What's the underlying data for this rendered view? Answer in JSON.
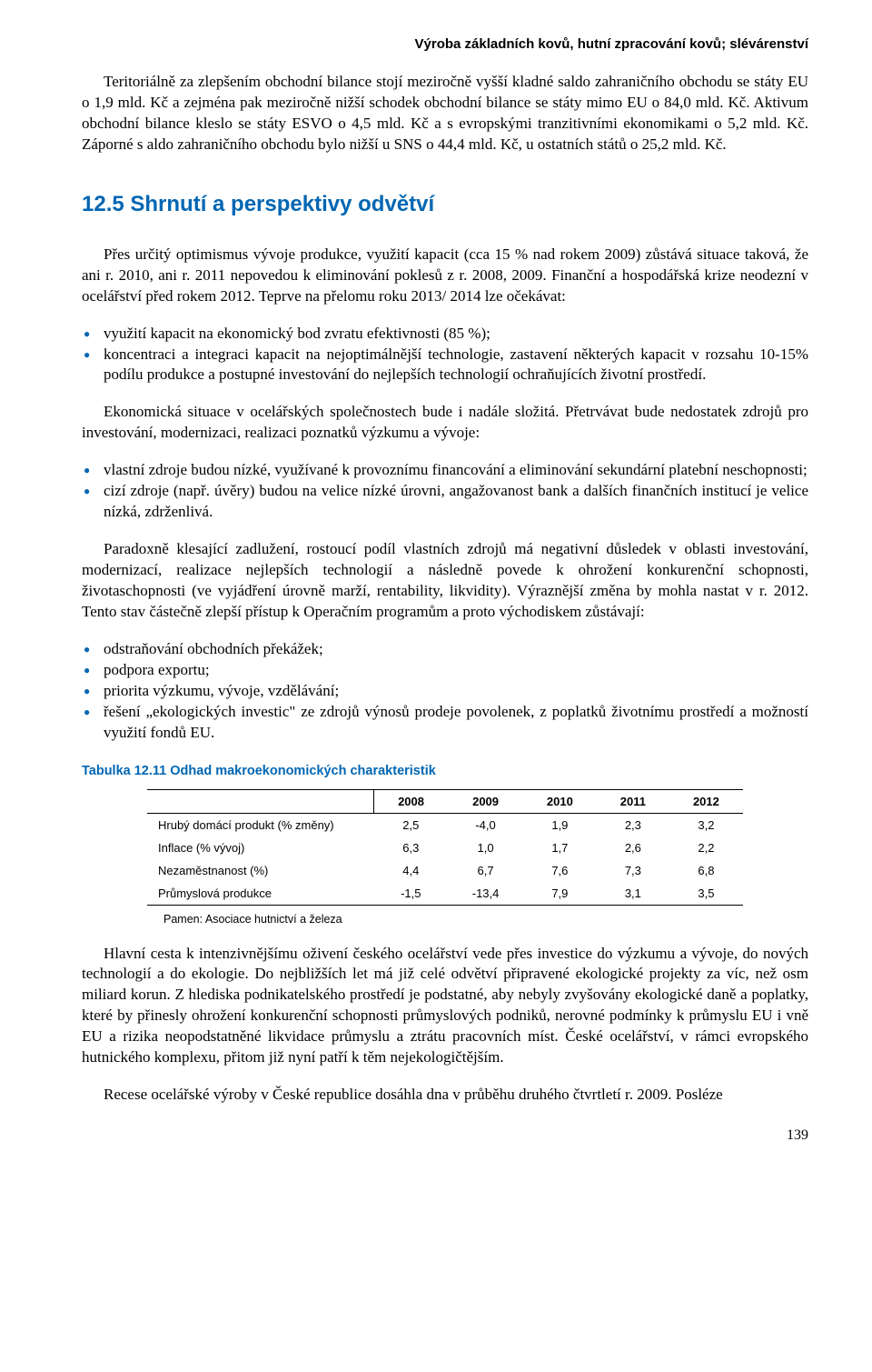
{
  "header": "Výroba základních kovů, hutní zpracování kovů; slévárenství",
  "paragraphs": {
    "p1": "Teritoriálně za zlepšením obchodní bilance stojí meziročně vyšší kladné saldo zahraničního obchodu se státy EU o 1,9 mld. Kč a zejména pak meziročně nižší schodek obchodní bilance se státy mimo EU o 84,0 mld. Kč. Aktivum obchodní bilance kleslo se státy ESVO o 4,5 mld. Kč a s evropskými tranzitivními ekonomikami o 5,2 mld. Kč. Záporné s aldo zahraničního obchodu bylo nižší u SNS o 44,4 mld. Kč, u ostatních států o 25,2 mld. Kč.",
    "p2": "Přes určitý optimismus vývoje produkce, využití kapacit (cca 15 % nad rokem 2009) zůstává situace taková, že ani r. 2010, ani r. 2011 nepovedou k eliminování poklesů z r. 2008, 2009. Finanční a hospodářská krize neodezní v ocelářství před rokem 2012. Teprve na přelomu roku 2013/ 2014 lze očekávat:",
    "p3": "Ekonomická situace v ocelářských společnostech bude i nadále složitá. Přetrvávat bude nedostatek zdrojů pro investování, modernizaci, realizaci poznatků výzkumu a vývoje:",
    "p4": "Paradoxně klesající zadlužení, rostoucí podíl vlastních zdrojů má negativní důsledek v oblasti investování, modernizací, realizace nejlepších technologií a následně povede k ohrožení konkurenční schopnosti, životaschopnosti (ve vyjádření úrovně marží, rentability, likvidity). Výraznější změna by mohla nastat v r. 2012. Tento stav částečně zlepší přístup k Operačním programům a proto východiskem zůstávají:",
    "p5": "Hlavní cesta k intenzivnějšímu oživení českého ocelářství vede přes investice do výzkumu a vývoje, do nových technologií a do ekologie. Do nejbližších let má již celé odvětví připravené ekologické projekty za víc, než osm miliard korun. Z hlediska podnikatelského prostředí je podstatné, aby nebyly zvyšovány ekologické daně a poplatky, které by přinesly ohrožení konkurenční schopnosti průmyslových podniků, nerovné podmínky k průmyslu EU i vně EU a rizika neopodstatněné likvidace průmyslu a ztrátu pracovních míst. České ocelářství, v rámci evropského hutnického komplexu, přitom již nyní patří k těm nejekologičtějším.",
    "p6": "Recese ocelářské výroby v České republice dosáhla dna v průběhu  druhého čtvrtletí r. 2009. Posléze"
  },
  "section_title": "12.5 Shrnutí a perspektivy odvětví",
  "bullets1": [
    "využití kapacit na ekonomický bod zvratu efektivnosti (85 %);",
    "koncentraci a integraci kapacit na nejoptimálnější technologie, zastavení některých kapacit v rozsahu 10-15% podílu produkce a postupné investování do nejlepších technologií ochraňujících životní prostředí."
  ],
  "bullets2": [
    "vlastní zdroje budou nízké, využívané k provoznímu financování a eliminování sekundární platební neschopnosti;",
    "cizí zdroje (např. úvěry) budou na velice nízké úrovni, angažovanost bank a dalších finančních institucí je velice nízká, zdrženlivá."
  ],
  "bullets3": [
    "odstraňování obchodních překážek;",
    "podpora exportu;",
    "priorita výzkumu, vývoje, vzdělávání;",
    "řešení „ekologických investic\" ze zdrojů výnosů prodeje povolenek, z poplatků životnímu prostředí a možností využití fondů EU."
  ],
  "table": {
    "caption": "Tabulka 12.11 Odhad makroekonomických charakteristik",
    "columns": [
      "",
      "2008",
      "2009",
      "2010",
      "2011",
      "2012"
    ],
    "rows": [
      [
        "Hrubý domácí produkt (% změny)",
        "2,5",
        "-4,0",
        "1,9",
        "2,3",
        "3,2"
      ],
      [
        "Inflace (% vývoj)",
        "6,3",
        "1,0",
        "1,7",
        "2,6",
        "2,2"
      ],
      [
        "Nezaměstnanost (%)",
        "4,4",
        "6,7",
        "7,6",
        "7,3",
        "6,8"
      ],
      [
        "Průmyslová produkce",
        "-1,5",
        "-13,4",
        "7,9",
        "3,1",
        "3,5"
      ]
    ],
    "source": "Pamen: Asociace hutnictví a železa"
  },
  "page_number": "139"
}
